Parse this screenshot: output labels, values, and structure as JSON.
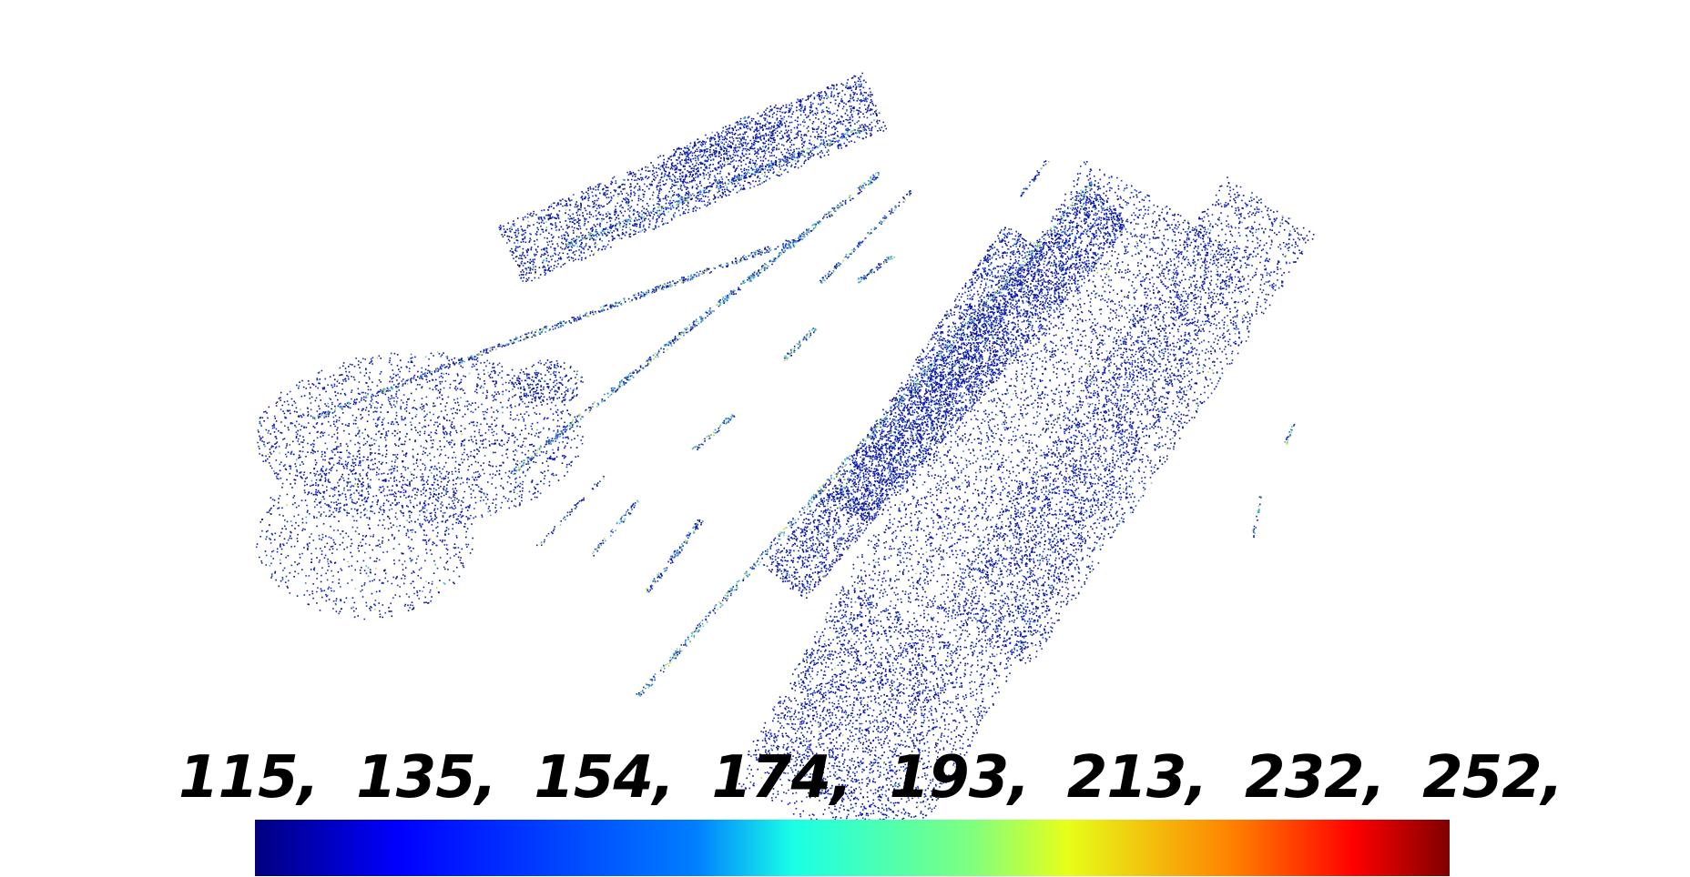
{
  "colorbar": {
    "tick_labels": [
      "115,",
      "135,",
      "154,",
      "174,",
      "193,",
      "213,",
      "232,",
      "252,"
    ],
    "colormap": "jet",
    "stops": [
      "#00007f",
      "#0000ff",
      "#007fff",
      "#19ffe6",
      "#7fff7f",
      "#e6ff19",
      "#ff7f00",
      "#ff0000",
      "#7f0000"
    ]
  },
  "point_cloud": {
    "background": "#ffffff",
    "dominant_color": "#0a1aa8"
  }
}
